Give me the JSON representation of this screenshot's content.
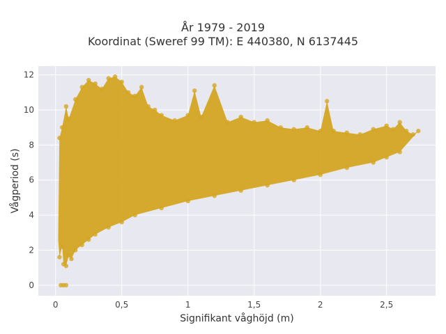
{
  "chart_data": {
    "type": "scatter",
    "title": "År 1979 - 2019",
    "subtitle": "Koordinat (Sweref 99 TM): E 440380, N 6137445",
    "xlabel": "Signifikant våghöjd (m)",
    "ylabel": "Vågperiod (s)",
    "xlim": [
      -0.13,
      2.87
    ],
    "ylim": [
      -0.6,
      12.5
    ],
    "x_ticks": [
      0,
      0.5,
      1,
      1.5,
      2,
      2.5
    ],
    "x_tick_labels": [
      "0",
      "0,5",
      "1",
      "1,5",
      "2",
      "2,5"
    ],
    "y_ticks": [
      0,
      2,
      4,
      6,
      8,
      10,
      12
    ],
    "y_tick_labels": [
      "0",
      "2",
      "4",
      "6",
      "8",
      "10",
      "12"
    ],
    "grid": true,
    "marker_color": "#D4A522",
    "plot_background": "#E8E8F0",
    "series": [
      {
        "values": [
          [
            0.04,
            0.0
          ],
          [
            0.06,
            0.0
          ],
          [
            0.08,
            0.0
          ],
          [
            0.03,
            1.6
          ],
          [
            0.05,
            2.2
          ],
          [
            0.06,
            1.2
          ],
          [
            0.08,
            1.1
          ],
          [
            0.1,
            1.7
          ],
          [
            0.12,
            1.5
          ],
          [
            0.15,
            2.0
          ],
          [
            0.2,
            2.3
          ],
          [
            0.25,
            2.6
          ],
          [
            0.3,
            2.9
          ],
          [
            0.4,
            3.3
          ],
          [
            0.5,
            3.6
          ],
          [
            0.6,
            4.0
          ],
          [
            0.8,
            4.4
          ],
          [
            1.0,
            4.8
          ],
          [
            1.2,
            5.1
          ],
          [
            1.4,
            5.4
          ],
          [
            1.6,
            5.7
          ],
          [
            1.8,
            6.0
          ],
          [
            2.0,
            6.3
          ],
          [
            2.2,
            6.7
          ],
          [
            2.4,
            7.0
          ],
          [
            2.5,
            7.3
          ],
          [
            2.6,
            7.6
          ],
          [
            0.03,
            8.4
          ],
          [
            0.05,
            9.0
          ],
          [
            0.08,
            10.2
          ],
          [
            0.1,
            9.5
          ],
          [
            0.15,
            10.6
          ],
          [
            0.2,
            11.3
          ],
          [
            0.25,
            11.7
          ],
          [
            0.3,
            11.5
          ],
          [
            0.35,
            11.2
          ],
          [
            0.4,
            11.8
          ],
          [
            0.45,
            11.9
          ],
          [
            0.5,
            11.6
          ],
          [
            0.55,
            11.0
          ],
          [
            0.6,
            10.8
          ],
          [
            0.65,
            11.3
          ],
          [
            0.7,
            10.2
          ],
          [
            0.75,
            10.0
          ],
          [
            0.8,
            9.7
          ],
          [
            0.9,
            9.4
          ],
          [
            1.0,
            9.7
          ],
          [
            1.05,
            11.1
          ],
          [
            1.1,
            9.6
          ],
          [
            1.2,
            11.4
          ],
          [
            1.3,
            9.3
          ],
          [
            1.4,
            9.6
          ],
          [
            1.5,
            9.3
          ],
          [
            1.6,
            9.4
          ],
          [
            1.7,
            9.0
          ],
          [
            1.8,
            8.9
          ],
          [
            1.9,
            9.0
          ],
          [
            2.0,
            8.8
          ],
          [
            2.05,
            10.5
          ],
          [
            2.1,
            8.8
          ],
          [
            2.2,
            8.7
          ],
          [
            2.3,
            8.6
          ],
          [
            2.4,
            8.9
          ],
          [
            2.5,
            9.1
          ],
          [
            2.55,
            8.9
          ],
          [
            2.6,
            9.3
          ],
          [
            2.65,
            8.8
          ],
          [
            2.7,
            8.6
          ],
          [
            2.74,
            8.8
          ]
        ]
      }
    ]
  }
}
